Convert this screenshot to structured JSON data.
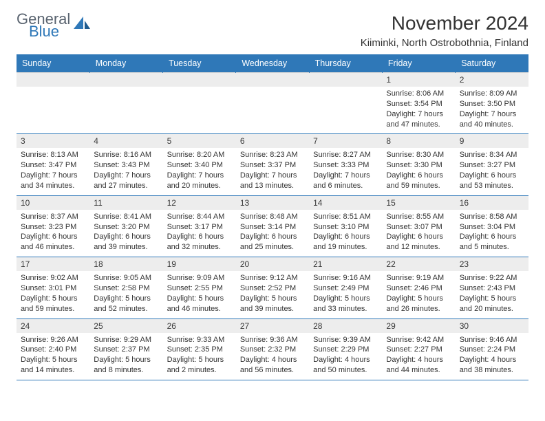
{
  "brand": {
    "general": "General",
    "blue": "Blue"
  },
  "title": "November 2024",
  "location": "Kiiminki, North Ostrobothnia, Finland",
  "colors": {
    "header_bg": "#2f78b8",
    "header_text": "#ffffff",
    "daynum_bg": "#ededed",
    "text": "#333333",
    "logo_gray": "#5a6470",
    "logo_blue": "#2f78b8"
  },
  "day_headers": [
    "Sunday",
    "Monday",
    "Tuesday",
    "Wednesday",
    "Thursday",
    "Friday",
    "Saturday"
  ],
  "weeks": [
    [
      null,
      null,
      null,
      null,
      null,
      {
        "n": "1",
        "sr": "Sunrise: 8:06 AM",
        "ss": "Sunset: 3:54 PM",
        "dl": "Daylight: 7 hours and 47 minutes."
      },
      {
        "n": "2",
        "sr": "Sunrise: 8:09 AM",
        "ss": "Sunset: 3:50 PM",
        "dl": "Daylight: 7 hours and 40 minutes."
      }
    ],
    [
      {
        "n": "3",
        "sr": "Sunrise: 8:13 AM",
        "ss": "Sunset: 3:47 PM",
        "dl": "Daylight: 7 hours and 34 minutes."
      },
      {
        "n": "4",
        "sr": "Sunrise: 8:16 AM",
        "ss": "Sunset: 3:43 PM",
        "dl": "Daylight: 7 hours and 27 minutes."
      },
      {
        "n": "5",
        "sr": "Sunrise: 8:20 AM",
        "ss": "Sunset: 3:40 PM",
        "dl": "Daylight: 7 hours and 20 minutes."
      },
      {
        "n": "6",
        "sr": "Sunrise: 8:23 AM",
        "ss": "Sunset: 3:37 PM",
        "dl": "Daylight: 7 hours and 13 minutes."
      },
      {
        "n": "7",
        "sr": "Sunrise: 8:27 AM",
        "ss": "Sunset: 3:33 PM",
        "dl": "Daylight: 7 hours and 6 minutes."
      },
      {
        "n": "8",
        "sr": "Sunrise: 8:30 AM",
        "ss": "Sunset: 3:30 PM",
        "dl": "Daylight: 6 hours and 59 minutes."
      },
      {
        "n": "9",
        "sr": "Sunrise: 8:34 AM",
        "ss": "Sunset: 3:27 PM",
        "dl": "Daylight: 6 hours and 53 minutes."
      }
    ],
    [
      {
        "n": "10",
        "sr": "Sunrise: 8:37 AM",
        "ss": "Sunset: 3:23 PM",
        "dl": "Daylight: 6 hours and 46 minutes."
      },
      {
        "n": "11",
        "sr": "Sunrise: 8:41 AM",
        "ss": "Sunset: 3:20 PM",
        "dl": "Daylight: 6 hours and 39 minutes."
      },
      {
        "n": "12",
        "sr": "Sunrise: 8:44 AM",
        "ss": "Sunset: 3:17 PM",
        "dl": "Daylight: 6 hours and 32 minutes."
      },
      {
        "n": "13",
        "sr": "Sunrise: 8:48 AM",
        "ss": "Sunset: 3:14 PM",
        "dl": "Daylight: 6 hours and 25 minutes."
      },
      {
        "n": "14",
        "sr": "Sunrise: 8:51 AM",
        "ss": "Sunset: 3:10 PM",
        "dl": "Daylight: 6 hours and 19 minutes."
      },
      {
        "n": "15",
        "sr": "Sunrise: 8:55 AM",
        "ss": "Sunset: 3:07 PM",
        "dl": "Daylight: 6 hours and 12 minutes."
      },
      {
        "n": "16",
        "sr": "Sunrise: 8:58 AM",
        "ss": "Sunset: 3:04 PM",
        "dl": "Daylight: 6 hours and 5 minutes."
      }
    ],
    [
      {
        "n": "17",
        "sr": "Sunrise: 9:02 AM",
        "ss": "Sunset: 3:01 PM",
        "dl": "Daylight: 5 hours and 59 minutes."
      },
      {
        "n": "18",
        "sr": "Sunrise: 9:05 AM",
        "ss": "Sunset: 2:58 PM",
        "dl": "Daylight: 5 hours and 52 minutes."
      },
      {
        "n": "19",
        "sr": "Sunrise: 9:09 AM",
        "ss": "Sunset: 2:55 PM",
        "dl": "Daylight: 5 hours and 46 minutes."
      },
      {
        "n": "20",
        "sr": "Sunrise: 9:12 AM",
        "ss": "Sunset: 2:52 PM",
        "dl": "Daylight: 5 hours and 39 minutes."
      },
      {
        "n": "21",
        "sr": "Sunrise: 9:16 AM",
        "ss": "Sunset: 2:49 PM",
        "dl": "Daylight: 5 hours and 33 minutes."
      },
      {
        "n": "22",
        "sr": "Sunrise: 9:19 AM",
        "ss": "Sunset: 2:46 PM",
        "dl": "Daylight: 5 hours and 26 minutes."
      },
      {
        "n": "23",
        "sr": "Sunrise: 9:22 AM",
        "ss": "Sunset: 2:43 PM",
        "dl": "Daylight: 5 hours and 20 minutes."
      }
    ],
    [
      {
        "n": "24",
        "sr": "Sunrise: 9:26 AM",
        "ss": "Sunset: 2:40 PM",
        "dl": "Daylight: 5 hours and 14 minutes."
      },
      {
        "n": "25",
        "sr": "Sunrise: 9:29 AM",
        "ss": "Sunset: 2:37 PM",
        "dl": "Daylight: 5 hours and 8 minutes."
      },
      {
        "n": "26",
        "sr": "Sunrise: 9:33 AM",
        "ss": "Sunset: 2:35 PM",
        "dl": "Daylight: 5 hours and 2 minutes."
      },
      {
        "n": "27",
        "sr": "Sunrise: 9:36 AM",
        "ss": "Sunset: 2:32 PM",
        "dl": "Daylight: 4 hours and 56 minutes."
      },
      {
        "n": "28",
        "sr": "Sunrise: 9:39 AM",
        "ss": "Sunset: 2:29 PM",
        "dl": "Daylight: 4 hours and 50 minutes."
      },
      {
        "n": "29",
        "sr": "Sunrise: 9:42 AM",
        "ss": "Sunset: 2:27 PM",
        "dl": "Daylight: 4 hours and 44 minutes."
      },
      {
        "n": "30",
        "sr": "Sunrise: 9:46 AM",
        "ss": "Sunset: 2:24 PM",
        "dl": "Daylight: 4 hours and 38 minutes."
      }
    ]
  ]
}
